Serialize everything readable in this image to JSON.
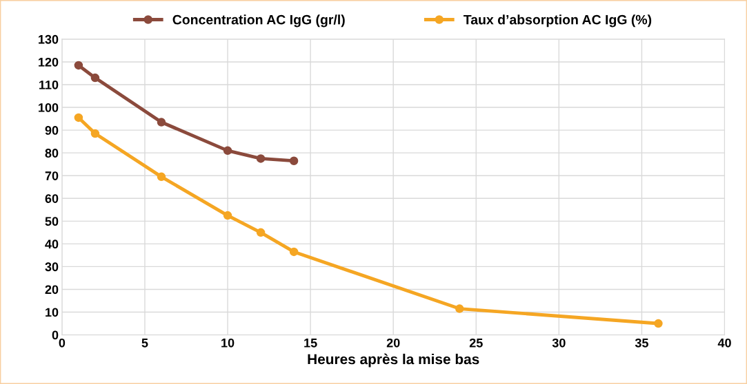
{
  "chart_data": {
    "type": "line",
    "xlabel": "Heures après la mise bas",
    "xlim": [
      0,
      40
    ],
    "xticks": [
      0,
      5,
      10,
      15,
      20,
      25,
      30,
      35,
      40
    ],
    "ylim": [
      0,
      130
    ],
    "yticks": [
      0,
      10,
      20,
      30,
      40,
      50,
      60,
      70,
      80,
      90,
      100,
      110,
      120,
      130
    ],
    "grid": true,
    "legend": "top",
    "marker": "circle",
    "line_style": "solid",
    "series": [
      {
        "name": "Concentration AC IgG (gr/l)",
        "color": "#8b4a3c",
        "x": [
          1,
          2,
          6,
          10,
          12,
          14
        ],
        "values": [
          118.5,
          113,
          93.5,
          81,
          77.5,
          76.5
        ]
      },
      {
        "name": "Taux d’absorption AC IgG (%)",
        "color": "#f5a623",
        "x": [
          1,
          2,
          6,
          10,
          12,
          14,
          24,
          36
        ],
        "values": [
          95.5,
          88.5,
          69.5,
          52.5,
          45,
          36.5,
          11.5,
          5
        ]
      }
    ]
  }
}
